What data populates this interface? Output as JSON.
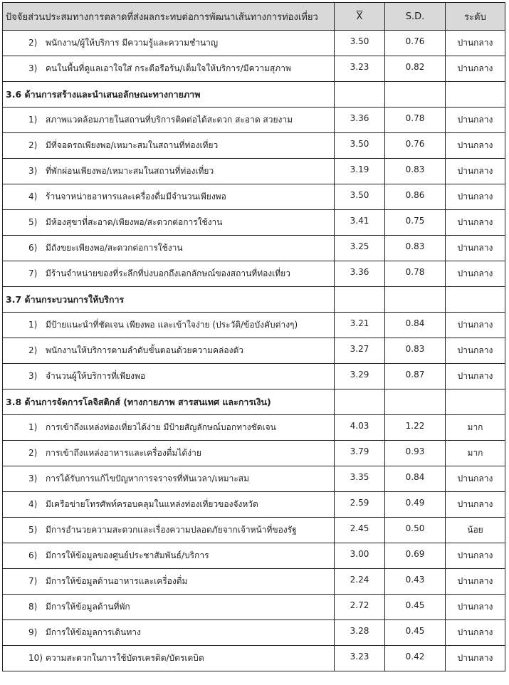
{
  "header": {
    "factor": "ปัจจัยส่วนประสมทางการตลาดที่ส่งผลกระทบต่อการพัฒนาเส้นทางการท่องเที่ยว",
    "mean": "X",
    "sd": "S.D.",
    "level": "ระดับ"
  },
  "rows": [
    {
      "type": "item",
      "no": "2)",
      "text": "พนักงาน/ผู้ให้บริการ มีความรู้และความชำนาญ",
      "mean": "3.50",
      "sd": "0.76",
      "level": "ปานกลาง"
    },
    {
      "type": "item",
      "no": "3)",
      "text": "คนในพื้นที่ดูแลเอาใจใส่ กระตือรือร้น/เต็มใจให้บริการ/มีความสุภาพ",
      "mean": "3.23",
      "sd": "0.82",
      "level": "ปานกลาง"
    },
    {
      "type": "section",
      "text": "3.6 ด้านการสร้างและนำเสนอลักษณะทางกายภาพ"
    },
    {
      "type": "item",
      "no": "1)",
      "text": "สภาพแวดล้อมภายในสถานที่บริการติดต่อได้สะดวก สะอาด สวยงาม",
      "mean": "3.36",
      "sd": "0.78",
      "level": "ปานกลาง"
    },
    {
      "type": "item",
      "no": "2)",
      "text": "มีที่จอดรถเพียงพอ/เหมาะสมในสถานที่ท่องเที่ยว",
      "mean": "3.50",
      "sd": "0.76",
      "level": "ปานกลาง"
    },
    {
      "type": "item",
      "no": "3)",
      "text": "ที่พักผ่อนเพียงพอ/เหมาะสมในสถานที่ท่องเที่ยว",
      "mean": "3.19",
      "sd": "0.83",
      "level": "ปานกลาง"
    },
    {
      "type": "item",
      "no": "4)",
      "text": "ร้านจาหน่ายอาหารและเครื่องดื่มมีจำนวนเพียงพอ",
      "mean": "3.50",
      "sd": "0.86",
      "level": "ปานกลาง"
    },
    {
      "type": "item",
      "no": "5)",
      "text": "มีห้องสุขาที่สะอาด/เพียงพอ/สะดวกต่อการใช้งาน",
      "mean": "3.41",
      "sd": "0.75",
      "level": "ปานกลาง"
    },
    {
      "type": "item",
      "no": "6)",
      "text": "มีถังขยะเพียงพอ/สะดวกต่อการใช้งาน",
      "mean": "3.25",
      "sd": "0.83",
      "level": "ปานกลาง"
    },
    {
      "type": "item",
      "no": "7)",
      "text": "มีร้านจำหน่ายของที่ระลึกที่บ่งบอกถึงเอกลักษณ์ของสถานที่ท่องเที่ยว",
      "mean": "3.36",
      "sd": "0.78",
      "level": "ปานกลาง"
    },
    {
      "type": "section",
      "text": "3.7 ด้านกระบวนการให้บริการ"
    },
    {
      "type": "item",
      "no": "1)",
      "text": "มีป้ายแนะนำที่ชัดเจน เพียงพอ และเข้าใจง่าย (ประวัติ/ข้อบังคับต่างๆ)",
      "mean": "3.21",
      "sd": "0.84",
      "level": "ปานกลาง"
    },
    {
      "type": "item",
      "no": "2)",
      "text": "พนักงานให้บริการตามลำดับขั้นตอนด้วยความคล่องตัว",
      "mean": "3.27",
      "sd": "0.83",
      "level": "ปานกลาง"
    },
    {
      "type": "item",
      "no": "3)",
      "text": "จำนวนผู้ให้บริการที่เพียงพอ",
      "mean": "3.29",
      "sd": "0.87",
      "level": "ปานกลาง"
    },
    {
      "type": "section",
      "text": "3.8 ด้านการจัดการโลจิสติกส์ (ทางกายภาพ สารสนเทศ และการเงิน)"
    },
    {
      "type": "item",
      "no": "1)",
      "text": "การเข้าถึงแหล่งท่องเที่ยวได้ง่าย มีป้ายสัญลักษณ์บอกทางชัดเจน",
      "mean": "4.03",
      "sd": "1.22",
      "level": "มาก"
    },
    {
      "type": "item",
      "no": "2)",
      "text": "การเข้าถึงแหล่งอาหารและเครื่องดื่มได้ง่าย",
      "mean": "3.79",
      "sd": "0.93",
      "level": "มาก"
    },
    {
      "type": "item",
      "no": "3)",
      "text": "การได้รับการแก้ไขปัญหาการจราจรที่ทันเวลา/เหมาะสม",
      "mean": "3.35",
      "sd": "0.84",
      "level": "ปานกลาง"
    },
    {
      "type": "item",
      "no": "4)",
      "text": "มีเครือข่ายโทรศัพท์ครอบคลุมในแหล่งท่องเที่ยวของจังหวัด",
      "mean": "2.59",
      "sd": "0.49",
      "level": "ปานกลาง"
    },
    {
      "type": "item",
      "no": "5)",
      "text": "มีการอำนวยความสะดวกและเรื่องความปลอดภัยจากเจ้าหน้าที่ของรัฐ",
      "mean": "2.45",
      "sd": "0.50",
      "level": "น้อย"
    },
    {
      "type": "item",
      "no": "6)",
      "text": "มีการให้ข้อมูลของศูนย์ประชาสัมพันธ์/บริการ",
      "mean": "3.00",
      "sd": "0.69",
      "level": "ปานกลาง"
    },
    {
      "type": "item",
      "no": "7)",
      "text": "มีการให้ข้อมูลด้านอาหารและเครื่องดื่ม",
      "mean": "2.24",
      "sd": "0.43",
      "level": "ปานกลาง"
    },
    {
      "type": "item",
      "no": "8)",
      "text": "มีการให้ข้อมูลด้านที่พัก",
      "mean": "2.72",
      "sd": "0.45",
      "level": "ปานกลาง"
    },
    {
      "type": "item",
      "no": "9)",
      "text": "มีการให้ข้อมูลการเดินทาง",
      "mean": "3.28",
      "sd": "0.45",
      "level": "ปานกลาง"
    },
    {
      "type": "item",
      "no": "10)",
      "text": "ความสะดวกในการใช้บัตรเครดิต/บัตรเดบิต",
      "mean": "3.23",
      "sd": "0.42",
      "level": "ปานกลาง"
    }
  ]
}
